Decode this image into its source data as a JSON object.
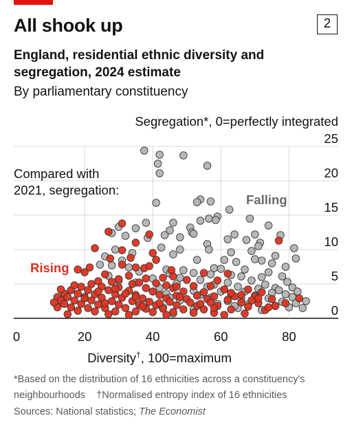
{
  "header": {
    "title": "All shook up",
    "badge": "2",
    "subtitle": "England, residential ethnic diversity and segregation, 2024 estimate",
    "subnote": "By parliamentary constituency"
  },
  "footer": {
    "note1": "*Based on the distribution of 16 ethnicities across a constituency's",
    "note2a": "neighbourhoods",
    "note2b": "†Normalised entropy index of 16 ethnicities",
    "sources_prefix": "Sources: National statistics; ",
    "sources_italic": "The Economist"
  },
  "chart_data": {
    "type": "scatter",
    "ylabel": "Segregation*, 0=perfectly integrated",
    "xlabel": "Diversity†, 100=maximum",
    "xlim": [
      0,
      88
    ],
    "ylim": [
      0,
      25
    ],
    "x_ticks": [
      0,
      20,
      40,
      60,
      80
    ],
    "y_ticks": [
      0,
      5,
      10,
      15,
      20,
      25
    ],
    "grid": "horizontal",
    "annotations": [
      "Compared with",
      "2021, segregation:",
      "Rising",
      "Falling"
    ],
    "colors": {
      "rising": "#e3301e",
      "falling": "#b4b4b4",
      "grid": "#d9d9d9"
    },
    "series": [
      {
        "name": "Falling",
        "color": "#b4b4b4",
        "points": [
          [
            37.5,
            24.4
          ],
          [
            42,
            23.8
          ],
          [
            49,
            23.7
          ],
          [
            41.5,
            22.5
          ],
          [
            56,
            22.2
          ],
          [
            42,
            21.1
          ],
          [
            54,
            17.3
          ],
          [
            57,
            17
          ],
          [
            53,
            16.9
          ],
          [
            41,
            16.8
          ],
          [
            62.5,
            15.8
          ],
          [
            59,
            14.8
          ],
          [
            56.5,
            14.5
          ],
          [
            58.5,
            14.3
          ],
          [
            68.5,
            14.5
          ],
          [
            38,
            13.9
          ],
          [
            54,
            14.2
          ],
          [
            46,
            13.9
          ],
          [
            74,
            13.5
          ],
          [
            30,
            13.3
          ],
          [
            51,
            13.2
          ],
          [
            35,
            13.1
          ],
          [
            45,
            12.8
          ],
          [
            51.5,
            12.5
          ],
          [
            28,
            12.4
          ],
          [
            52,
            12.3
          ],
          [
            70,
            12.2
          ],
          [
            64,
            12.2
          ],
          [
            43.5,
            12.1
          ],
          [
            77.5,
            12.1
          ],
          [
            32,
            12
          ],
          [
            48,
            11.8
          ],
          [
            38.5,
            11.7
          ],
          [
            62,
            11.5
          ],
          [
            67.5,
            11.4
          ],
          [
            71.5,
            11
          ],
          [
            56,
            10.8
          ],
          [
            71,
            10.5
          ],
          [
            42.5,
            10.3
          ],
          [
            48,
            10
          ],
          [
            56.5,
            10
          ],
          [
            81.5,
            10.2
          ],
          [
            29,
            10
          ],
          [
            69,
            9.8
          ],
          [
            34,
            9.5
          ],
          [
            63,
            9.6
          ],
          [
            46,
            9.3
          ],
          [
            76,
            9.1
          ],
          [
            26,
            9
          ],
          [
            82,
            8.7
          ],
          [
            61,
            8.5
          ],
          [
            70,
            8.6
          ],
          [
            31,
            8.4
          ],
          [
            53,
            8.5
          ],
          [
            64.5,
            8.2
          ],
          [
            72,
            8.4
          ],
          [
            75,
            8
          ],
          [
            24.5,
            7.8
          ],
          [
            79,
            7.5
          ],
          [
            28,
            7.7
          ],
          [
            33,
            7.4
          ],
          [
            58,
            7.3
          ],
          [
            60,
            7.2
          ],
          [
            44,
            7.1
          ],
          [
            49,
            7
          ],
          [
            67,
            7.1
          ],
          [
            74,
            6.7
          ],
          [
            36,
            6.8
          ],
          [
            52,
            6.6
          ],
          [
            57,
            6.4
          ],
          [
            63,
            6.3
          ],
          [
            45,
            6.5
          ],
          [
            27,
            6.2
          ],
          [
            66,
            6.1
          ],
          [
            72,
            6
          ],
          [
            78,
            6.1
          ],
          [
            48,
            5.9
          ],
          [
            40,
            5.8
          ],
          [
            54,
            5.6
          ],
          [
            69,
            5.5
          ],
          [
            79.5,
            5.3
          ],
          [
            30,
            5.5
          ],
          [
            35,
            5.2
          ],
          [
            62,
            5.2
          ],
          [
            47,
            5
          ],
          [
            58,
            4.9
          ],
          [
            73,
            4.9
          ],
          [
            56,
            4.6
          ],
          [
            65,
            4.6
          ],
          [
            42,
            4.4
          ],
          [
            71,
            4.3
          ],
          [
            76,
            4.4
          ],
          [
            81,
            4.5
          ],
          [
            77,
            4.1
          ],
          [
            52,
            4
          ],
          [
            60,
            3.9
          ],
          [
            67,
            3.9
          ],
          [
            82.5,
            3.9
          ],
          [
            75,
            3.7
          ],
          [
            44,
            3.6
          ],
          [
            63,
            3.5
          ],
          [
            79,
            3.5
          ],
          [
            54,
            3.4
          ],
          [
            70,
            3.3
          ],
          [
            81,
            3.1
          ],
          [
            57,
            3
          ],
          [
            66,
            2.8
          ],
          [
            74,
            2.9
          ],
          [
            48,
            2.6
          ],
          [
            62,
            2.5
          ],
          [
            78,
            2.4
          ],
          [
            85,
            2.5
          ],
          [
            82,
            2.2
          ],
          [
            59,
            2.1
          ],
          [
            68,
            2
          ],
          [
            43,
            1.6
          ],
          [
            52,
            1.3
          ],
          [
            46,
            0.7
          ],
          [
            65,
            1.5
          ],
          [
            72,
            1.2
          ],
          [
            80,
            1.6
          ],
          [
            38,
            2.3
          ],
          [
            45,
            3
          ],
          [
            64,
            1.8
          ],
          [
            76,
            1.8
          ],
          [
            84,
            1.5
          ]
        ]
      },
      {
        "name": "Rising",
        "color": "#e3301e",
        "points": [
          [
            31,
            13.8
          ],
          [
            27,
            12.6
          ],
          [
            39,
            12.2
          ],
          [
            77,
            11.3
          ],
          [
            35,
            11
          ],
          [
            23,
            10.2
          ],
          [
            31,
            9.9
          ],
          [
            40,
            9.5
          ],
          [
            27.5,
            8.7
          ],
          [
            33.5,
            8.8
          ],
          [
            41,
            8.5
          ],
          [
            31,
            7.8
          ],
          [
            21.5,
            7.4
          ],
          [
            35,
            7.4
          ],
          [
            37.5,
            7.3
          ],
          [
            39,
            7.6
          ],
          [
            45.5,
            7
          ],
          [
            18,
            7.1
          ],
          [
            20,
            6.7
          ],
          [
            55,
            6.6
          ],
          [
            62,
            6.5
          ],
          [
            26,
            6.4
          ],
          [
            33,
            6.2
          ],
          [
            46,
            6.1
          ],
          [
            43,
            5.9
          ],
          [
            30,
            5.7
          ],
          [
            38,
            5.8
          ],
          [
            50,
            5.6
          ],
          [
            59,
            5.5
          ],
          [
            24,
            5.4
          ],
          [
            28,
            5.3
          ],
          [
            36,
            5.2
          ],
          [
            41,
            5.1
          ],
          [
            22,
            5
          ],
          [
            34,
            5
          ],
          [
            44,
            4.8
          ],
          [
            52,
            4.7
          ],
          [
            57,
            4.7
          ],
          [
            19,
            4.6
          ],
          [
            25,
            4.6
          ],
          [
            30,
            4.5
          ],
          [
            38,
            4.4
          ],
          [
            46,
            4.4
          ],
          [
            61,
            4.2
          ],
          [
            68,
            4.2
          ],
          [
            16,
            4.1
          ],
          [
            21,
            4.1
          ],
          [
            27,
            4.1
          ],
          [
            33,
            4
          ],
          [
            40,
            3.9
          ],
          [
            49,
            3.9
          ],
          [
            55,
            3.8
          ],
          [
            72,
            3.8
          ],
          [
            14,
            3.6
          ],
          [
            18,
            3.6
          ],
          [
            23,
            3.5
          ],
          [
            29,
            3.5
          ],
          [
            35,
            3.4
          ],
          [
            42,
            3.4
          ],
          [
            47,
            3.3
          ],
          [
            53,
            3.3
          ],
          [
            58,
            3.2
          ],
          [
            64,
            3.2
          ],
          [
            70,
            3.2
          ],
          [
            12,
            3.1
          ],
          [
            15,
            3.1
          ],
          [
            20,
            3.1
          ],
          [
            25,
            3
          ],
          [
            31,
            3
          ],
          [
            37,
            2.9
          ],
          [
            44,
            2.9
          ],
          [
            50,
            2.8
          ],
          [
            56,
            2.8
          ],
          [
            62,
            2.7
          ],
          [
            75,
            2.8
          ],
          [
            83,
            2.9
          ],
          [
            13,
            2.6
          ],
          [
            17,
            2.6
          ],
          [
            22,
            2.6
          ],
          [
            28,
            2.5
          ],
          [
            34,
            2.5
          ],
          [
            39,
            2.4
          ],
          [
            45,
            2.4
          ],
          [
            51,
            2.3
          ],
          [
            57,
            2.3
          ],
          [
            66,
            2.3
          ],
          [
            71,
            2.2
          ],
          [
            79,
            2.2
          ],
          [
            14,
            2.1
          ],
          [
            19,
            2.1
          ],
          [
            24,
            2
          ],
          [
            30,
            2
          ],
          [
            36,
            2
          ],
          [
            41,
            1.9
          ],
          [
            47,
            1.9
          ],
          [
            53,
            1.8
          ],
          [
            59,
            1.8
          ],
          [
            68,
            1.7
          ],
          [
            76,
            1.8
          ],
          [
            12,
            1.6
          ],
          [
            16,
            1.6
          ],
          [
            21,
            1.5
          ],
          [
            26,
            1.5
          ],
          [
            32,
            1.5
          ],
          [
            38,
            1.4
          ],
          [
            43,
            1.4
          ],
          [
            49,
            1.3
          ],
          [
            55,
            1.3
          ],
          [
            63,
            1.3
          ],
          [
            73,
            1.2
          ],
          [
            18,
            1.1
          ],
          [
            23,
            1
          ],
          [
            29,
            1
          ],
          [
            35,
            1
          ],
          [
            40,
            0.9
          ],
          [
            46,
            0.9
          ],
          [
            52,
            0.8
          ],
          [
            58,
            0.8
          ],
          [
            67,
            0.7
          ],
          [
            15,
            0.6
          ],
          [
            27,
            0.6
          ],
          [
            33,
            0.5
          ],
          [
            44,
            0.5
          ],
          [
            61,
            0.5
          ],
          [
            20,
            2.9
          ],
          [
            26,
            2.2
          ],
          [
            32,
            3.6
          ],
          [
            37,
            1.7
          ],
          [
            48,
            3.1
          ],
          [
            54,
            2.1
          ],
          [
            63,
            3.7
          ],
          [
            69,
            2.6
          ],
          [
            74,
            1.6
          ],
          [
            11,
            2.3
          ],
          [
            13,
            4.2
          ],
          [
            17,
            4.8
          ],
          [
            24,
            3.9
          ],
          [
            29,
            4.3
          ],
          [
            35,
            3.1
          ],
          [
            42,
            2.2
          ],
          [
            47,
            4.6
          ],
          [
            58,
            1.5
          ],
          [
            66,
            3.4
          ],
          [
            71,
            2.9
          ]
        ]
      }
    ]
  }
}
